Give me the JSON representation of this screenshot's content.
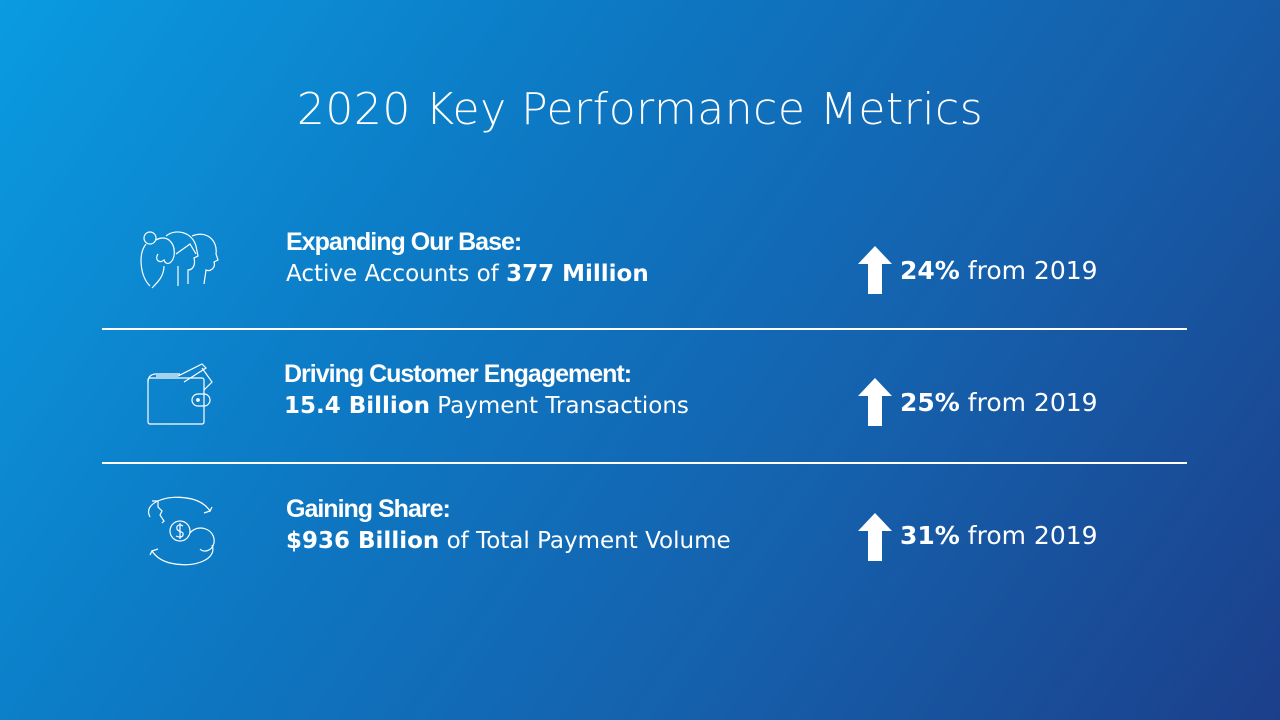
{
  "title": "2020 Key Performance Metrics",
  "metrics": [
    {
      "icon": "people-icon",
      "heading": "Expanding Our Base:",
      "pre": "Active Accounts of ",
      "bold": "377 Million",
      "post": "",
      "change": "24%",
      "change_suffix": " from 2019"
    },
    {
      "icon": "wallet-icon",
      "heading": "Driving Customer Engagement:",
      "pre": "",
      "bold": "15.4 Billion",
      "post": " Payment Transactions",
      "change": "25%",
      "change_suffix": " from 2019"
    },
    {
      "icon": "money-exchange-icon",
      "heading": "Gaining Share:",
      "pre": "",
      "bold": "$936 Billion",
      "post": " of Total Payment Volume",
      "change": "31%",
      "change_suffix": " from 2019"
    }
  ],
  "colors": {
    "bg_start": "#0a9be0",
    "bg_end": "#1c3f8a",
    "text": "#ffffff"
  }
}
